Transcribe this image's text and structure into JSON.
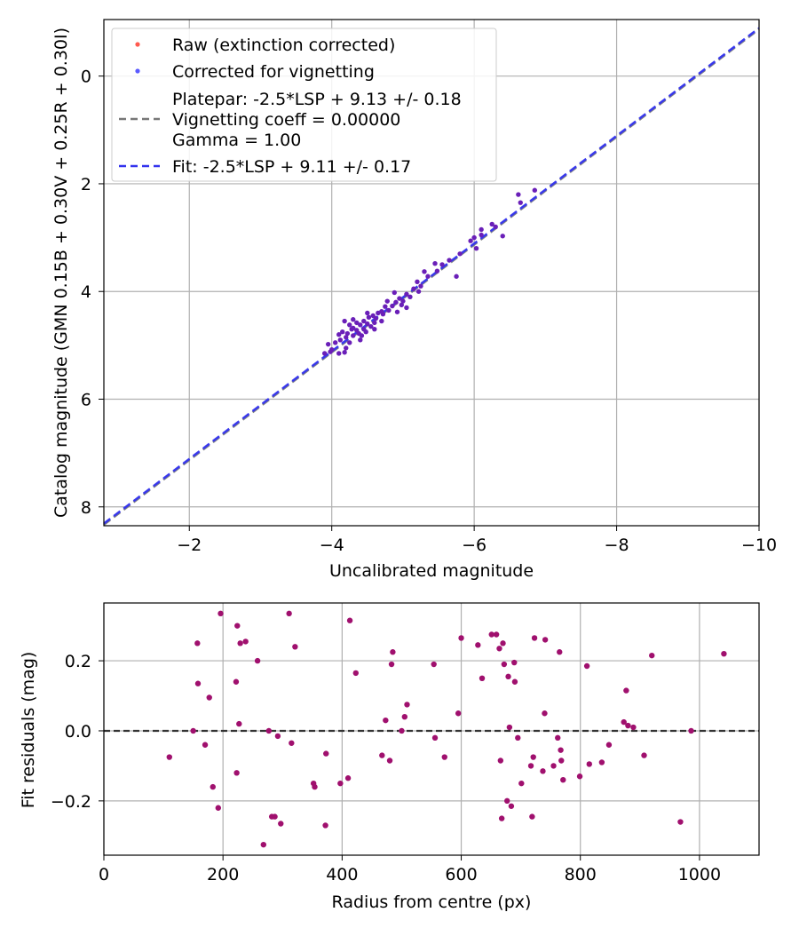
{
  "chart_data": [
    {
      "type": "scatter",
      "xlabel": "Uncalibrated magnitude",
      "ylabel": "Catalog magnitude (GMN 0.15B + 0.30V + 0.25R + 0.30I)",
      "xlim": [
        -0.8,
        -10
      ],
      "ylim": [
        8.35,
        -1.05
      ],
      "x_inverted": true,
      "y_inverted": true,
      "xticks": [
        -2,
        -4,
        -6,
        -8,
        -10
      ],
      "xtick_labels": [
        "−2",
        "−4",
        "−6",
        "−8",
        "−10"
      ],
      "yticks": [
        0,
        2,
        4,
        6,
        8
      ],
      "ytick_labels": [
        "0",
        "2",
        "4",
        "6",
        "8"
      ],
      "grid": true,
      "legend_position": "top-left",
      "legend": [
        {
          "label": "Raw (extinction corrected)",
          "marker": "dot",
          "color": "#ff5a4f"
        },
        {
          "label": "Corrected for vignetting",
          "marker": "dot",
          "color": "#5a5aff"
        },
        {
          "label": "Platepar: -2.5*LSP + 9.13 +/- 0.18\nVignetting coeff = 0.00000\nGamma = 1.00",
          "marker": "dash",
          "color": "#777777"
        },
        {
          "label": "Fit: -2.5*LSP + 9.11 +/- 0.17",
          "marker": "dash",
          "color": "#3333ee"
        }
      ],
      "lines": [
        {
          "name": "Platepar: -2.5*LSP + 9.13 +/- 0.18",
          "slope": 1,
          "intercept": 9.13,
          "color": "#777777",
          "style": "dashed"
        },
        {
          "name": "Fit: -2.5*LSP + 9.11 +/- 0.17",
          "slope": 1,
          "intercept": 9.11,
          "color": "#3333ee",
          "style": "dashed"
        }
      ],
      "series": [
        {
          "name": "Corrected for vignetting",
          "color": "#6a1fb8",
          "points": [
            [
              -6.85,
              2.12
            ],
            [
              -6.62,
              2.2
            ],
            [
              -6.65,
              2.35
            ],
            [
              -6.4,
              2.97
            ],
            [
              -6.3,
              2.8
            ],
            [
              -6.25,
              2.75
            ],
            [
              -6.1,
              2.95
            ],
            [
              -6.1,
              2.85
            ],
            [
              -6.0,
              3.0
            ],
            [
              -6.03,
              3.2
            ],
            [
              -5.95,
              3.06
            ],
            [
              -5.8,
              3.3
            ],
            [
              -5.75,
              3.72
            ],
            [
              -5.65,
              3.42
            ],
            [
              -5.55,
              3.5
            ],
            [
              -5.45,
              3.48
            ],
            [
              -5.48,
              3.62
            ],
            [
              -5.35,
              3.72
            ],
            [
              -5.3,
              3.63
            ],
            [
              -5.25,
              3.9
            ],
            [
              -5.2,
              3.82
            ],
            [
              -5.22,
              4.0
            ],
            [
              -5.15,
              3.95
            ],
            [
              -5.1,
              4.1
            ],
            [
              -5.05,
              4.05
            ],
            [
              -5.0,
              4.18
            ],
            [
              -5.05,
              4.3
            ],
            [
              -4.98,
              4.25
            ],
            [
              -4.95,
              4.13
            ],
            [
              -4.92,
              4.38
            ],
            [
              -4.9,
              4.2
            ],
            [
              -4.88,
              4.02
            ],
            [
              -4.85,
              4.27
            ],
            [
              -4.8,
              4.35
            ],
            [
              -4.78,
              4.18
            ],
            [
              -4.75,
              4.28
            ],
            [
              -4.72,
              4.42
            ],
            [
              -4.7,
              4.37
            ],
            [
              -4.7,
              4.55
            ],
            [
              -4.65,
              4.4
            ],
            [
              -4.62,
              4.5
            ],
            [
              -4.6,
              4.58
            ],
            [
              -4.58,
              4.45
            ],
            [
              -4.55,
              4.65
            ],
            [
              -4.52,
              4.48
            ],
            [
              -4.5,
              4.6
            ],
            [
              -4.48,
              4.75
            ],
            [
              -4.45,
              4.7
            ],
            [
              -4.45,
              4.55
            ],
            [
              -4.42,
              4.82
            ],
            [
              -4.4,
              4.62
            ],
            [
              -4.4,
              4.9
            ],
            [
              -4.38,
              4.78
            ],
            [
              -4.35,
              4.72
            ],
            [
              -4.35,
              4.58
            ],
            [
              -4.3,
              4.52
            ],
            [
              -4.3,
              4.82
            ],
            [
              -4.28,
              4.7
            ],
            [
              -4.25,
              4.95
            ],
            [
              -4.25,
              4.62
            ],
            [
              -4.22,
              4.78
            ],
            [
              -4.2,
              4.85
            ],
            [
              -4.2,
              5.05
            ],
            [
              -4.18,
              4.55
            ],
            [
              -4.15,
              4.75
            ],
            [
              -4.12,
              4.9
            ],
            [
              -4.1,
              4.8
            ],
            [
              -4.1,
              5.15
            ],
            [
              -4.05,
              4.95
            ],
            [
              -4.0,
              5.08
            ],
            [
              -3.95,
              4.98
            ],
            [
              -3.98,
              5.12
            ],
            [
              -3.9,
              5.15
            ],
            [
              -4.18,
              5.13
            ],
            [
              -4.6,
              4.7
            ],
            [
              -4.3,
              4.68
            ],
            [
              -4.5,
              4.4
            ]
          ]
        }
      ]
    },
    {
      "type": "scatter",
      "xlabel": "Radius from centre (px)",
      "ylabel": "Fit residuals (mag)",
      "xlim": [
        0,
        1100
      ],
      "ylim": [
        -0.355,
        0.365
      ],
      "xticks": [
        0,
        200,
        400,
        600,
        800,
        1000
      ],
      "xtick_labels": [
        "0",
        "200",
        "400",
        "600",
        "800",
        "1000"
      ],
      "yticks": [
        -0.2,
        0.0,
        0.2
      ],
      "ytick_labels": [
        "−0.2",
        "0.0",
        "0.2"
      ],
      "grid": true,
      "hline": {
        "y": 0.0,
        "style": "dashed",
        "color": "#333333"
      },
      "series": [
        {
          "name": "residuals",
          "color": "#a0106e",
          "points": [
            [
              110,
              -0.075
            ],
            [
              150,
              0.0
            ],
            [
              157,
              0.25
            ],
            [
              158,
              0.135
            ],
            [
              170,
              -0.04
            ],
            [
              177,
              0.095
            ],
            [
              183,
              -0.16
            ],
            [
              192,
              -0.22
            ],
            [
              196,
              0.335
            ],
            [
              222,
              0.14
            ],
            [
              223,
              -0.12
            ],
            [
              224,
              0.3
            ],
            [
              227,
              0.02
            ],
            [
              229,
              0.25
            ],
            [
              238,
              0.255
            ],
            [
              258,
              0.2
            ],
            [
              268,
              -0.325
            ],
            [
              277,
              0.0
            ],
            [
              282,
              -0.245
            ],
            [
              287,
              -0.245
            ],
            [
              292,
              -0.015
            ],
            [
              297,
              -0.265
            ],
            [
              311,
              0.335
            ],
            [
              315,
              -0.035
            ],
            [
              321,
              0.24
            ],
            [
              352,
              -0.15
            ],
            [
              354,
              -0.16
            ],
            [
              372,
              -0.27
            ],
            [
              373,
              -0.065
            ],
            [
              397,
              -0.15
            ],
            [
              410,
              -0.135
            ],
            [
              413,
              0.315
            ],
            [
              423,
              0.165
            ],
            [
              467,
              -0.07
            ],
            [
              473,
              0.03
            ],
            [
              480,
              -0.085
            ],
            [
              483,
              0.19
            ],
            [
              485,
              0.225
            ],
            [
              500,
              0.0
            ],
            [
              505,
              0.04
            ],
            [
              509,
              0.075
            ],
            [
              554,
              0.19
            ],
            [
              556,
              -0.02
            ],
            [
              572,
              -0.075
            ],
            [
              595,
              0.05
            ],
            [
              600,
              0.265
            ],
            [
              628,
              0.245
            ],
            [
              635,
              0.15
            ],
            [
              651,
              0.275
            ],
            [
              659,
              0.275
            ],
            [
              664,
              0.235
            ],
            [
              666,
              -0.085
            ],
            [
              668,
              -0.25
            ],
            [
              670,
              0.25
            ],
            [
              672,
              0.19
            ],
            [
              677,
              -0.2
            ],
            [
              679,
              0.155
            ],
            [
              681,
              0.01
            ],
            [
              684,
              -0.215
            ],
            [
              689,
              0.195
            ],
            [
              690,
              0.14
            ],
            [
              695,
              -0.02
            ],
            [
              701,
              -0.15
            ],
            [
              717,
              -0.1
            ],
            [
              719,
              -0.245
            ],
            [
              721,
              -0.075
            ],
            [
              723,
              0.265
            ],
            [
              737,
              -0.115
            ],
            [
              740,
              0.05
            ],
            [
              741,
              0.26
            ],
            [
              755,
              -0.1
            ],
            [
              762,
              -0.02
            ],
            [
              765,
              0.225
            ],
            [
              767,
              -0.055
            ],
            [
              768,
              -0.085
            ],
            [
              771,
              -0.14
            ],
            [
              799,
              -0.13
            ],
            [
              811,
              0.185
            ],
            [
              815,
              -0.095
            ],
            [
              836,
              -0.09
            ],
            [
              848,
              -0.04
            ],
            [
              873,
              0.025
            ],
            [
              877,
              0.115
            ],
            [
              880,
              0.015
            ],
            [
              889,
              0.01
            ],
            [
              907,
              -0.07
            ],
            [
              920,
              0.215
            ],
            [
              968,
              -0.26
            ],
            [
              986,
              0.0
            ],
            [
              1041,
              0.22
            ]
          ]
        }
      ]
    }
  ]
}
